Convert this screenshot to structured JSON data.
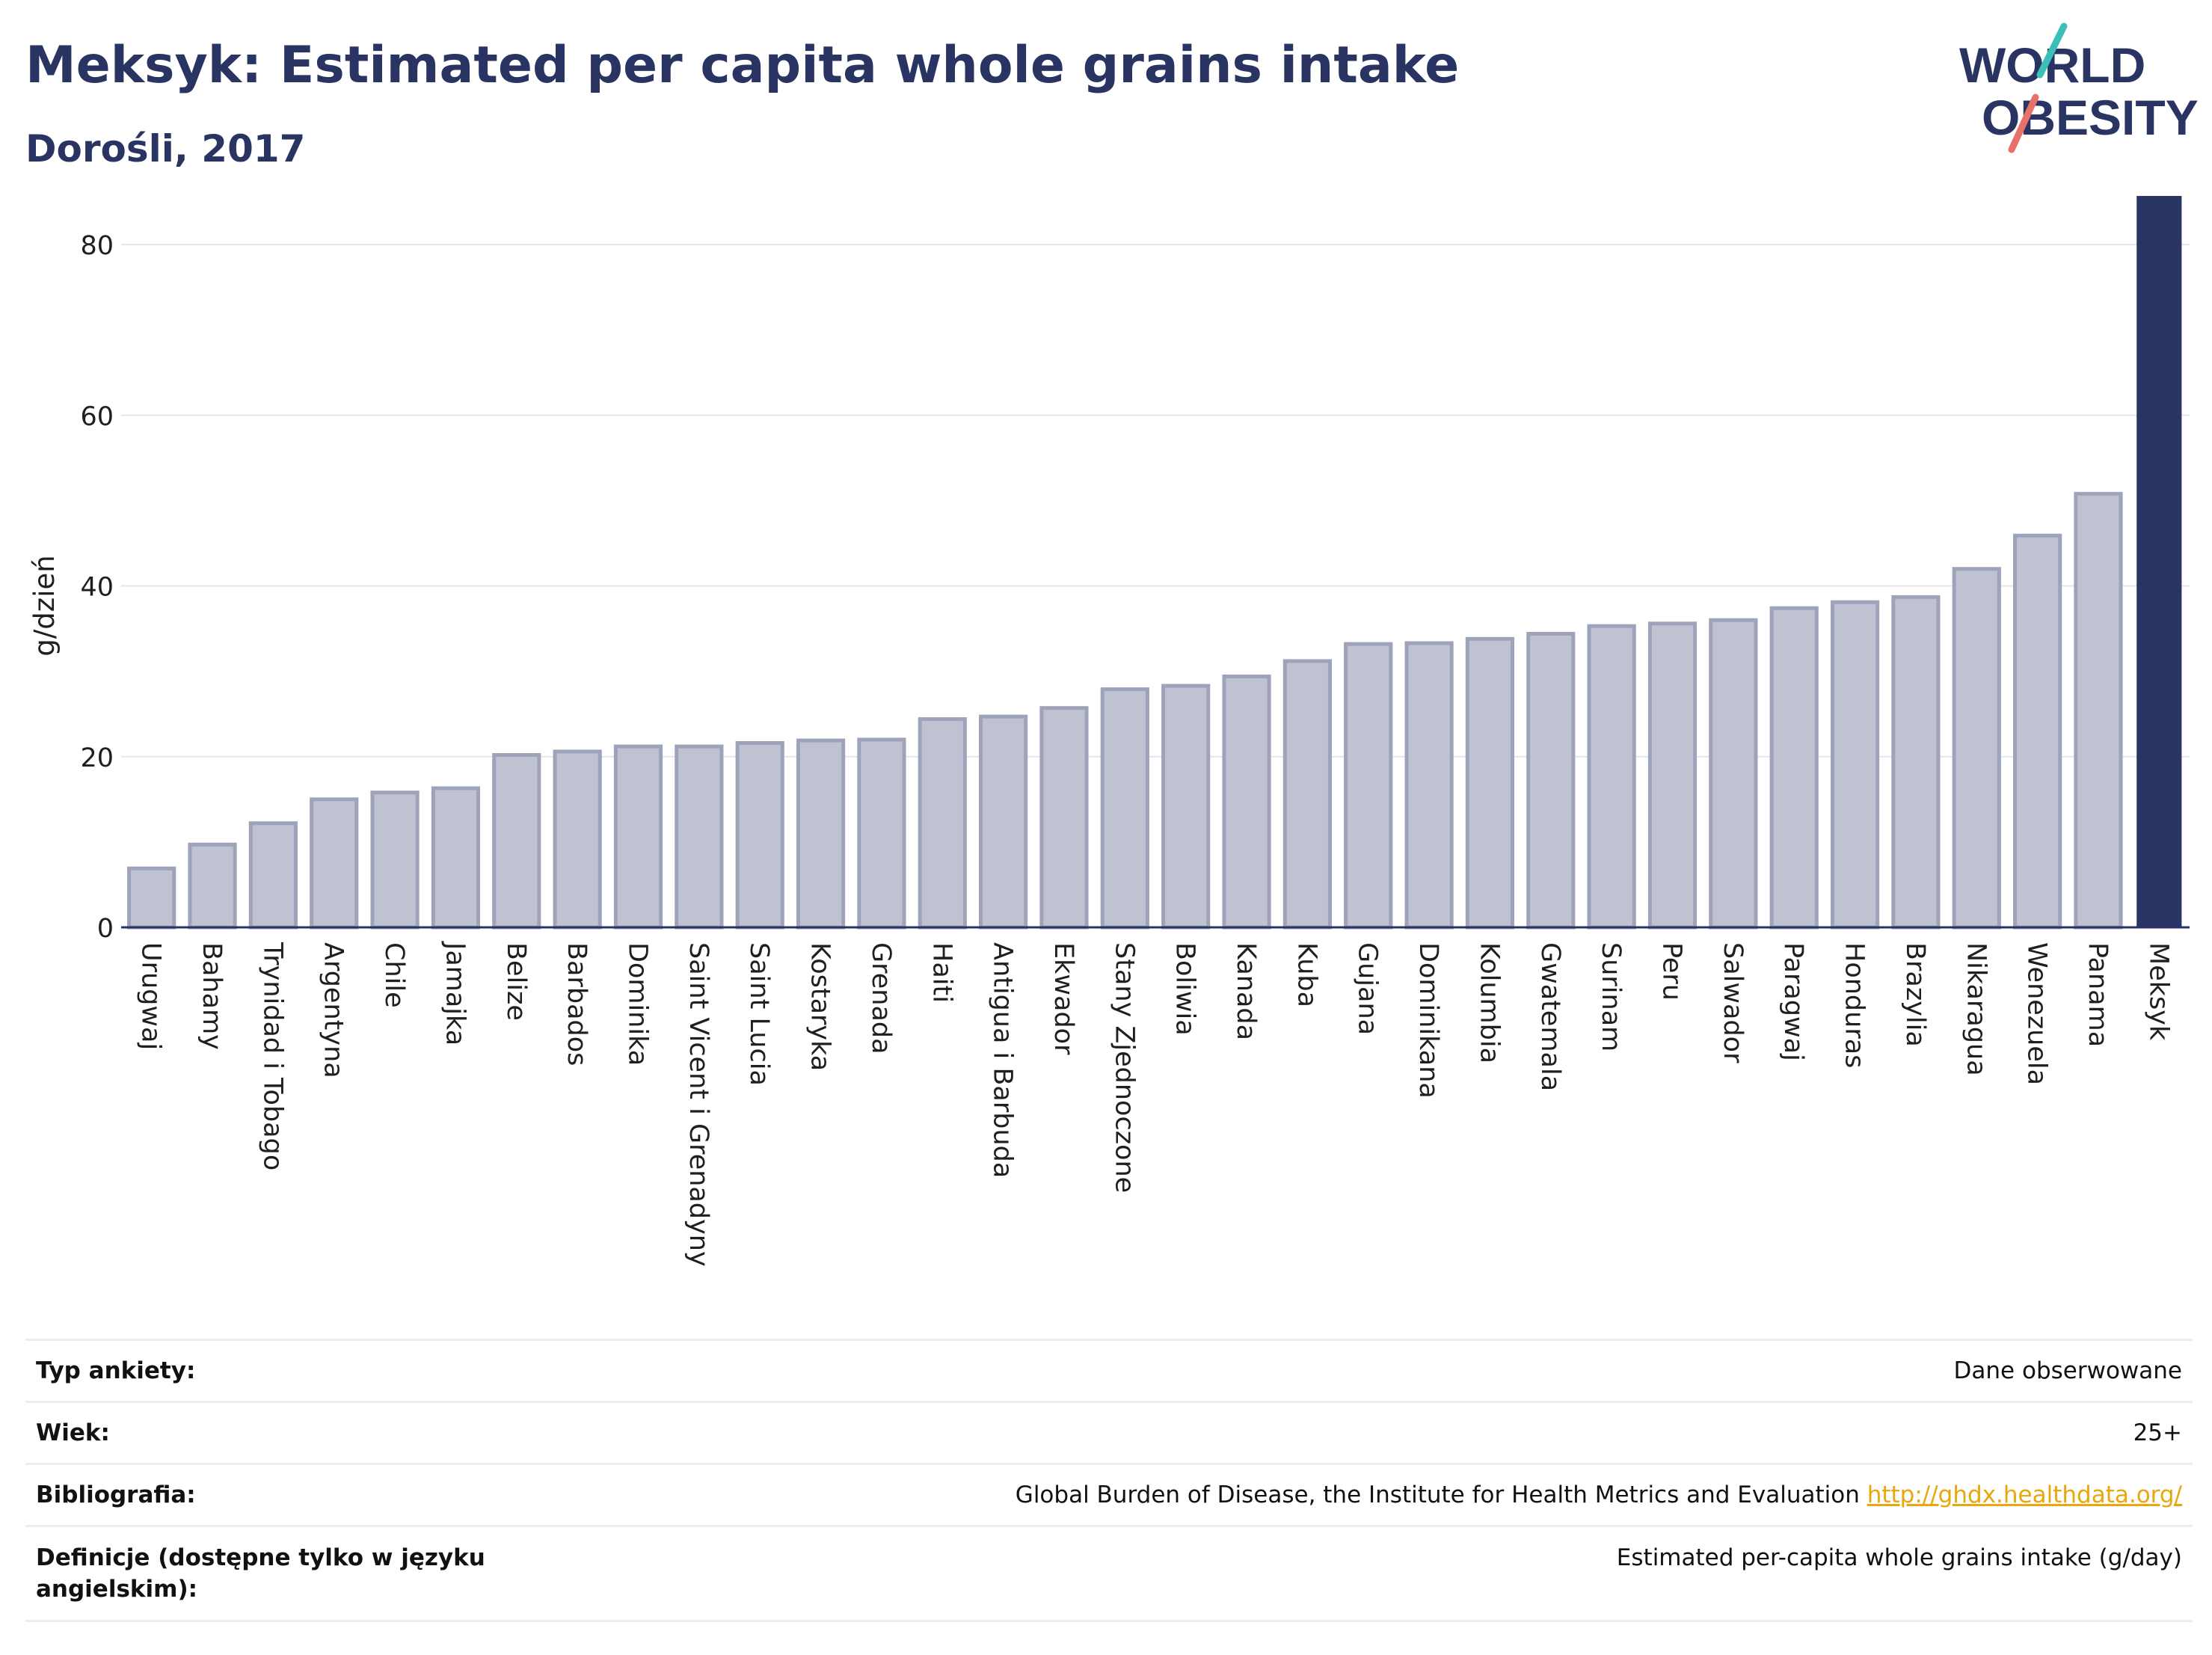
{
  "header": {
    "title": "Meksyk: Estimated per capita whole grains intake",
    "subtitle": "Dorośli, 2017"
  },
  "logo": {
    "line1": "WORLD",
    "line2": "OBESITY"
  },
  "colors": {
    "highlight": "#2a3462",
    "bar_fill": "#bfc2d1",
    "bar_stroke": "#9ea3ba",
    "grid": "#e4e6ee",
    "axis": "#2a3462",
    "logo_teal": "#3bbfb8",
    "logo_coral": "#e8726a",
    "link": "#e8a70c"
  },
  "chart_data": {
    "type": "bar",
    "title": "Meksyk: Estimated per capita whole grains intake",
    "subtitle": "Dorośli, 2017",
    "xlabel": "",
    "ylabel": "g/dzień",
    "ylim": [
      0,
      85
    ],
    "yticks": [
      0,
      20,
      40,
      60,
      80
    ],
    "grid": true,
    "highlight": "Meksyk",
    "categories": [
      "Urugwaj",
      "Bahamy",
      "Trynidad i Tobago",
      "Argentyna",
      "Chile",
      "Jamajka",
      "Belize",
      "Barbados",
      "Dominika",
      "Saint Vicent i Grenadyny",
      "Saint Lucia",
      "Kostaryka",
      "Grenada",
      "Haiti",
      "Antigua i Barbuda",
      "Ekwador",
      "Stany Zjednoczone",
      "Boliwia",
      "Kanada",
      "Kuba",
      "Gujana",
      "Dominikana",
      "Kolumbia",
      "Gwatemala",
      "Surinam",
      "Peru",
      "Salwador",
      "Paragwaj",
      "Honduras",
      "Brazylia",
      "Nikaragua",
      "Wenezuela",
      "Panama",
      "Meksyk"
    ],
    "values": [
      6.9,
      9.7,
      12.2,
      15.0,
      15.8,
      16.3,
      20.2,
      20.6,
      21.2,
      21.2,
      21.6,
      21.9,
      22.0,
      24.4,
      24.7,
      25.7,
      27.9,
      28.3,
      29.4,
      31.2,
      33.2,
      33.3,
      33.8,
      34.4,
      35.3,
      35.6,
      36.0,
      37.4,
      38.1,
      38.7,
      42.0,
      45.9,
      50.8,
      85.7
    ]
  },
  "info_table": [
    {
      "label": "Typ ankiety:",
      "value": "Dane obserwowane"
    },
    {
      "label": "Wiek:",
      "value": "25+"
    },
    {
      "label": "Bibliografia:",
      "value": "Global Burden of Disease, the Institute for Health Metrics and Evaluation",
      "link": "http://ghdx.healthdata.org/"
    },
    {
      "label": "Definicje (dostępne tylko w języku angielskim):",
      "value": "Estimated per-capita whole grains intake (g/day)"
    }
  ]
}
